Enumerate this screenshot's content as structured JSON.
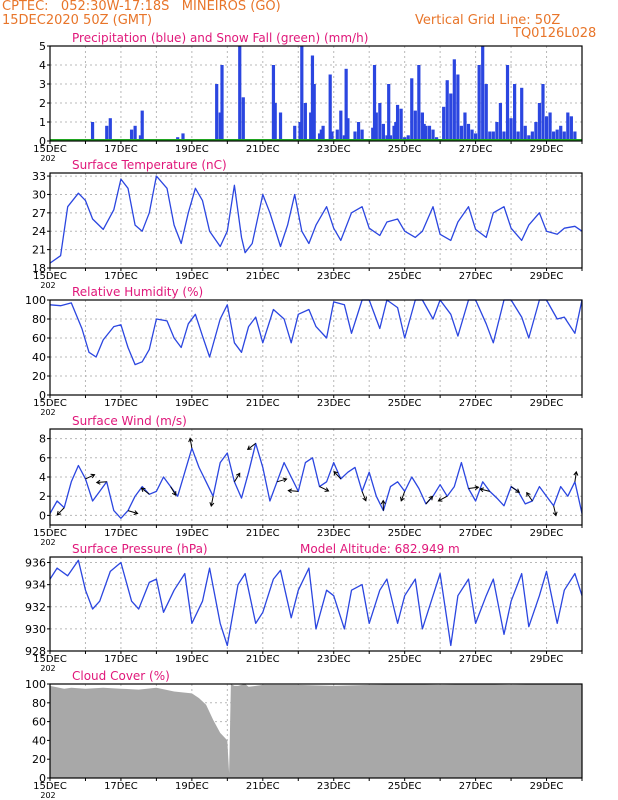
{
  "header": {
    "line1": "CPTEC:   052:30W-17:18S   MINEIROS (GO)",
    "line2": "15DEC2020 50Z (GMT)",
    "right1": "Vertical Grid Line: 50Z",
    "right2": "TQ0126L028"
  },
  "colors": {
    "header": "#e8752a",
    "title": "#e0177a",
    "line": "#2b46e0",
    "snow": "#1fa51f",
    "cloud": "#a8a8a8",
    "wind_arrow": "#000000"
  },
  "x_ticks": [
    "15DEC",
    "17DEC",
    "19DEC",
    "21DEC",
    "23DEC",
    "25DEC",
    "27DEC",
    "29DEC"
  ],
  "x_sublabel": "202",
  "chart_data": [
    {
      "id": "precip",
      "type": "bar",
      "title": "Precipitation (blue) and Snow Fall (green) (mm/h)",
      "ylim": [
        0,
        5
      ],
      "yticks": [
        "0",
        "1",
        "2",
        "3",
        "4",
        "5"
      ],
      "grid": true,
      "x_unit": "days since 15DEC",
      "series": [
        {
          "name": "Precipitation",
          "x": [
            1.2,
            1.6,
            1.7,
            2.1,
            2.3,
            2.4,
            2.55,
            2.6,
            3.6,
            3.75,
            4.7,
            4.8,
            4.85,
            5.35,
            5.45,
            6.3,
            6.35,
            6.5,
            6.9,
            7.05,
            7.1,
            7.2,
            7.35,
            7.4,
            7.45,
            7.6,
            7.65,
            7.7,
            7.9,
            7.95,
            8.1,
            8.2,
            8.3,
            8.35,
            8.4,
            8.6,
            8.7,
            8.8,
            9.1,
            9.15,
            9.2,
            9.3,
            9.4,
            9.5,
            9.55,
            9.6,
            9.7,
            9.75,
            9.8,
            9.9,
            10.0,
            10.1,
            10.2,
            10.3,
            10.4,
            10.5,
            10.55,
            10.6,
            10.7,
            10.8,
            10.9,
            11.1,
            11.2,
            11.3,
            11.4,
            11.5,
            11.6,
            11.7,
            11.8,
            11.9,
            12.0,
            12.1,
            12.2,
            12.3,
            12.4,
            12.5,
            12.6,
            12.7,
            12.8,
            12.9,
            13.0,
            13.1,
            13.2,
            13.3,
            13.4,
            13.5,
            13.6,
            13.7,
            13.8,
            13.9,
            14.0,
            14.1,
            14.2,
            14.3,
            14.4,
            14.5,
            14.6,
            14.7,
            14.8
          ],
          "values": [
            1.0,
            0.8,
            1.2,
            0.1,
            0.6,
            0.8,
            0.3,
            1.6,
            0.2,
            0.4,
            3.0,
            1.5,
            4.0,
            5.0,
            2.3,
            4.0,
            2.0,
            1.5,
            0.8,
            1.0,
            5.0,
            2.0,
            1.5,
            4.5,
            3.0,
            0.4,
            0.6,
            0.8,
            3.5,
            0.5,
            0.6,
            1.6,
            0.3,
            3.8,
            1.2,
            0.5,
            1.0,
            0.6,
            0.7,
            4.0,
            1.5,
            2.0,
            0.9,
            0.3,
            3.0,
            0.3,
            0.8,
            1.0,
            1.9,
            1.7,
            0.2,
            0.3,
            3.3,
            1.6,
            4.0,
            1.5,
            0.9,
            0.8,
            0.8,
            0.6,
            0.2,
            1.8,
            3.2,
            2.5,
            4.3,
            3.5,
            0.8,
            1.5,
            0.9,
            0.6,
            0.4,
            4.0,
            5.0,
            3.0,
            0.5,
            0.5,
            1.0,
            2.0,
            0.5,
            4.0,
            1.2,
            3.0,
            0.5,
            2.8,
            0.8,
            0.3,
            0.5,
            1.0,
            2.0,
            3.0,
            1.3,
            1.5,
            0.5,
            0.6,
            0.8,
            0.5,
            1.5,
            1.3,
            0.5
          ]
        },
        {
          "name": "Snow Fall",
          "x": [
            0,
            15
          ],
          "values": [
            0,
            0
          ]
        }
      ]
    },
    {
      "id": "temp",
      "type": "line",
      "title": "Surface Temperature (nC)",
      "ylim": [
        18,
        33.5
      ],
      "yticks": [
        "18",
        "21",
        "24",
        "27",
        "30",
        "33"
      ],
      "grid": true,
      "x": [
        0,
        0.3,
        0.5,
        0.8,
        1.0,
        1.2,
        1.5,
        1.8,
        2.0,
        2.2,
        2.4,
        2.6,
        2.8,
        3.0,
        3.3,
        3.5,
        3.7,
        3.9,
        4.1,
        4.3,
        4.5,
        4.8,
        5.0,
        5.2,
        5.4,
        5.5,
        5.7,
        6.0,
        6.2,
        6.5,
        6.7,
        6.9,
        7.1,
        7.3,
        7.5,
        7.8,
        8.0,
        8.2,
        8.5,
        8.8,
        9.0,
        9.3,
        9.5,
        9.8,
        10.0,
        10.3,
        10.5,
        10.8,
        11.0,
        11.3,
        11.5,
        11.8,
        12.0,
        12.3,
        12.5,
        12.8,
        13.0,
        13.3,
        13.5,
        13.8,
        14.0,
        14.3,
        14.5,
        14.8,
        15.0
      ],
      "values": [
        18.8,
        20,
        28,
        30.2,
        29,
        26,
        24.3,
        27.5,
        32.5,
        31,
        25,
        24,
        27,
        33,
        31,
        25,
        22,
        27,
        31,
        29,
        24,
        21.5,
        24,
        31.5,
        23,
        20.5,
        22,
        30,
        27,
        21.5,
        25,
        30,
        24,
        22,
        25,
        28,
        24.5,
        22.5,
        27,
        28,
        24.5,
        23.3,
        25.5,
        26,
        24,
        23,
        24,
        28,
        23.5,
        22.5,
        25.5,
        28,
        24.3,
        23,
        27,
        28,
        24.5,
        22.5,
        25,
        27,
        24,
        23.5,
        24.5,
        24.8,
        24
      ]
    },
    {
      "id": "rh",
      "type": "line",
      "title": "Relative Humidity (%)",
      "ylim": [
        0,
        100
      ],
      "yticks": [
        "0",
        "20",
        "40",
        "60",
        "80",
        "100"
      ],
      "grid": true,
      "x": [
        0,
        0.3,
        0.6,
        0.9,
        1.1,
        1.3,
        1.5,
        1.8,
        2.0,
        2.2,
        2.4,
        2.6,
        2.8,
        3.0,
        3.3,
        3.5,
        3.7,
        3.9,
        4.1,
        4.3,
        4.5,
        4.8,
        5.0,
        5.2,
        5.4,
        5.6,
        5.8,
        6.0,
        6.3,
        6.6,
        6.8,
        7.0,
        7.3,
        7.5,
        7.8,
        8.0,
        8.3,
        8.5,
        8.8,
        9.0,
        9.3,
        9.5,
        9.8,
        10.0,
        10.3,
        10.5,
        10.8,
        11.0,
        11.3,
        11.5,
        11.8,
        12.0,
        12.3,
        12.5,
        12.8,
        13.0,
        13.3,
        13.5,
        13.8,
        14.0,
        14.3,
        14.5,
        14.8,
        15.0
      ],
      "values": [
        95,
        94,
        97,
        70,
        45,
        40,
        58,
        72,
        74,
        50,
        32,
        35,
        48,
        80,
        78,
        60,
        50,
        75,
        85,
        62,
        40,
        80,
        95,
        55,
        45,
        72,
        82,
        55,
        90,
        80,
        55,
        85,
        90,
        72,
        60,
        98,
        95,
        65,
        100,
        100,
        70,
        100,
        92,
        60,
        100,
        100,
        80,
        100,
        85,
        62,
        100,
        100,
        75,
        55,
        100,
        100,
        82,
        60,
        100,
        100,
        80,
        82,
        65,
        100
      ]
    },
    {
      "id": "wind",
      "type": "line",
      "title": "Surface Wind (m/s)",
      "ylim": [
        -1,
        9
      ],
      "yticks": [
        "0",
        "2",
        "4",
        "6",
        "8"
      ],
      "grid": true,
      "x": [
        0,
        0.2,
        0.4,
        0.6,
        0.8,
        1.0,
        1.2,
        1.4,
        1.6,
        1.8,
        2.0,
        2.2,
        2.4,
        2.6,
        2.8,
        3.0,
        3.2,
        3.4,
        3.6,
        3.8,
        4.0,
        4.2,
        4.4,
        4.6,
        4.8,
        5.0,
        5.2,
        5.4,
        5.6,
        5.8,
        6.0,
        6.2,
        6.4,
        6.6,
        6.8,
        7.0,
        7.2,
        7.4,
        7.6,
        7.8,
        8.0,
        8.2,
        8.4,
        8.6,
        8.8,
        9.0,
        9.2,
        9.4,
        9.6,
        9.8,
        10.0,
        10.2,
        10.4,
        10.6,
        10.8,
        11.0,
        11.2,
        11.4,
        11.6,
        11.8,
        12.0,
        12.2,
        12.4,
        12.6,
        12.8,
        13.0,
        13.2,
        13.4,
        13.6,
        13.8,
        14.0,
        14.2,
        14.4,
        14.6,
        14.8,
        15.0
      ],
      "values": [
        0.2,
        1.5,
        0.8,
        3.5,
        5.2,
        3.8,
        1.5,
        2.5,
        3.5,
        0.5,
        -0.3,
        0.5,
        2.0,
        3.0,
        2.2,
        2.5,
        4.0,
        3.0,
        2.0,
        4.5,
        7.0,
        5.0,
        3.5,
        2.0,
        5.5,
        6.5,
        3.5,
        1.8,
        4.5,
        7.5,
        5.0,
        1.5,
        3.5,
        5.5,
        4.0,
        2.5,
        5.5,
        6.0,
        3.0,
        3.5,
        5.5,
        3.8,
        4.5,
        5.0,
        2.5,
        4.5,
        2.0,
        0.5,
        3.0,
        3.5,
        2.5,
        4.0,
        2.8,
        1.2,
        2.0,
        3.2,
        2.0,
        3.0,
        5.5,
        2.8,
        1.5,
        3.5,
        2.5,
        1.8,
        1.0,
        3.0,
        2.5,
        1.2,
        1.5,
        3.0,
        2.0,
        1.0,
        3.0,
        2.0,
        3.5,
        0.2
      ]
    },
    {
      "id": "pressure",
      "type": "line",
      "title": "Surface Pressure (hPa)",
      "annotation": "Model Altitude: 682.949  m",
      "ylim": [
        928,
        936.5
      ],
      "yticks": [
        "928",
        "930",
        "932",
        "934",
        "936"
      ],
      "grid": true,
      "x": [
        0,
        0.2,
        0.5,
        0.8,
        1.0,
        1.2,
        1.4,
        1.7,
        2.0,
        2.3,
        2.5,
        2.8,
        3.0,
        3.2,
        3.5,
        3.8,
        4.0,
        4.3,
        4.5,
        4.8,
        5.0,
        5.3,
        5.5,
        5.8,
        6.0,
        6.3,
        6.5,
        6.8,
        7.0,
        7.3,
        7.5,
        7.8,
        8.0,
        8.3,
        8.5,
        8.8,
        9.0,
        9.3,
        9.5,
        9.8,
        10.0,
        10.3,
        10.5,
        10.8,
        11.0,
        11.3,
        11.5,
        11.8,
        12.0,
        12.3,
        12.5,
        12.8,
        13.0,
        13.3,
        13.5,
        13.8,
        14.0,
        14.3,
        14.5,
        14.8,
        15.0
      ],
      "values": [
        934.5,
        935.5,
        934.8,
        936.2,
        933.5,
        931.8,
        932.5,
        935.2,
        936,
        932.5,
        931.8,
        934.2,
        934.5,
        931.5,
        933.5,
        935,
        930.5,
        932.5,
        935.5,
        930.5,
        928.5,
        934,
        935,
        930.5,
        931.5,
        934.5,
        935.3,
        931,
        933.5,
        935.5,
        930,
        933.5,
        933,
        930,
        933.5,
        934,
        930.5,
        933.5,
        934.5,
        930.5,
        933,
        934.5,
        930,
        933,
        935,
        928.5,
        933,
        934.5,
        930.5,
        933,
        934.5,
        929.5,
        932.5,
        935,
        930.2,
        933,
        935.2,
        930.5,
        933.5,
        935,
        933
      ]
    },
    {
      "id": "cloud",
      "type": "area",
      "title": "Cloud Cover (%)",
      "ylim": [
        0,
        100
      ],
      "yticks": [
        "0",
        "20",
        "40",
        "60",
        "80",
        "100"
      ],
      "grid": true,
      "x": [
        0,
        0.4,
        0.6,
        1.0,
        1.5,
        2.0,
        2.5,
        3.0,
        3.5,
        4.0,
        4.2,
        4.4,
        4.6,
        4.8,
        5.0,
        5.05,
        5.1,
        5.2,
        5.3,
        5.4,
        5.5,
        5.6,
        6.0,
        7.0,
        8.0,
        9.0,
        10.0,
        11.0,
        12.0,
        13.0,
        14.0,
        15.0
      ],
      "values": [
        98,
        95,
        96,
        95,
        96,
        95,
        94,
        96,
        92,
        90,
        85,
        78,
        62,
        48,
        40,
        5,
        100,
        98,
        98,
        99,
        100,
        97,
        99,
        99,
        98,
        99,
        100,
        99,
        100,
        99,
        100,
        100
      ]
    }
  ]
}
